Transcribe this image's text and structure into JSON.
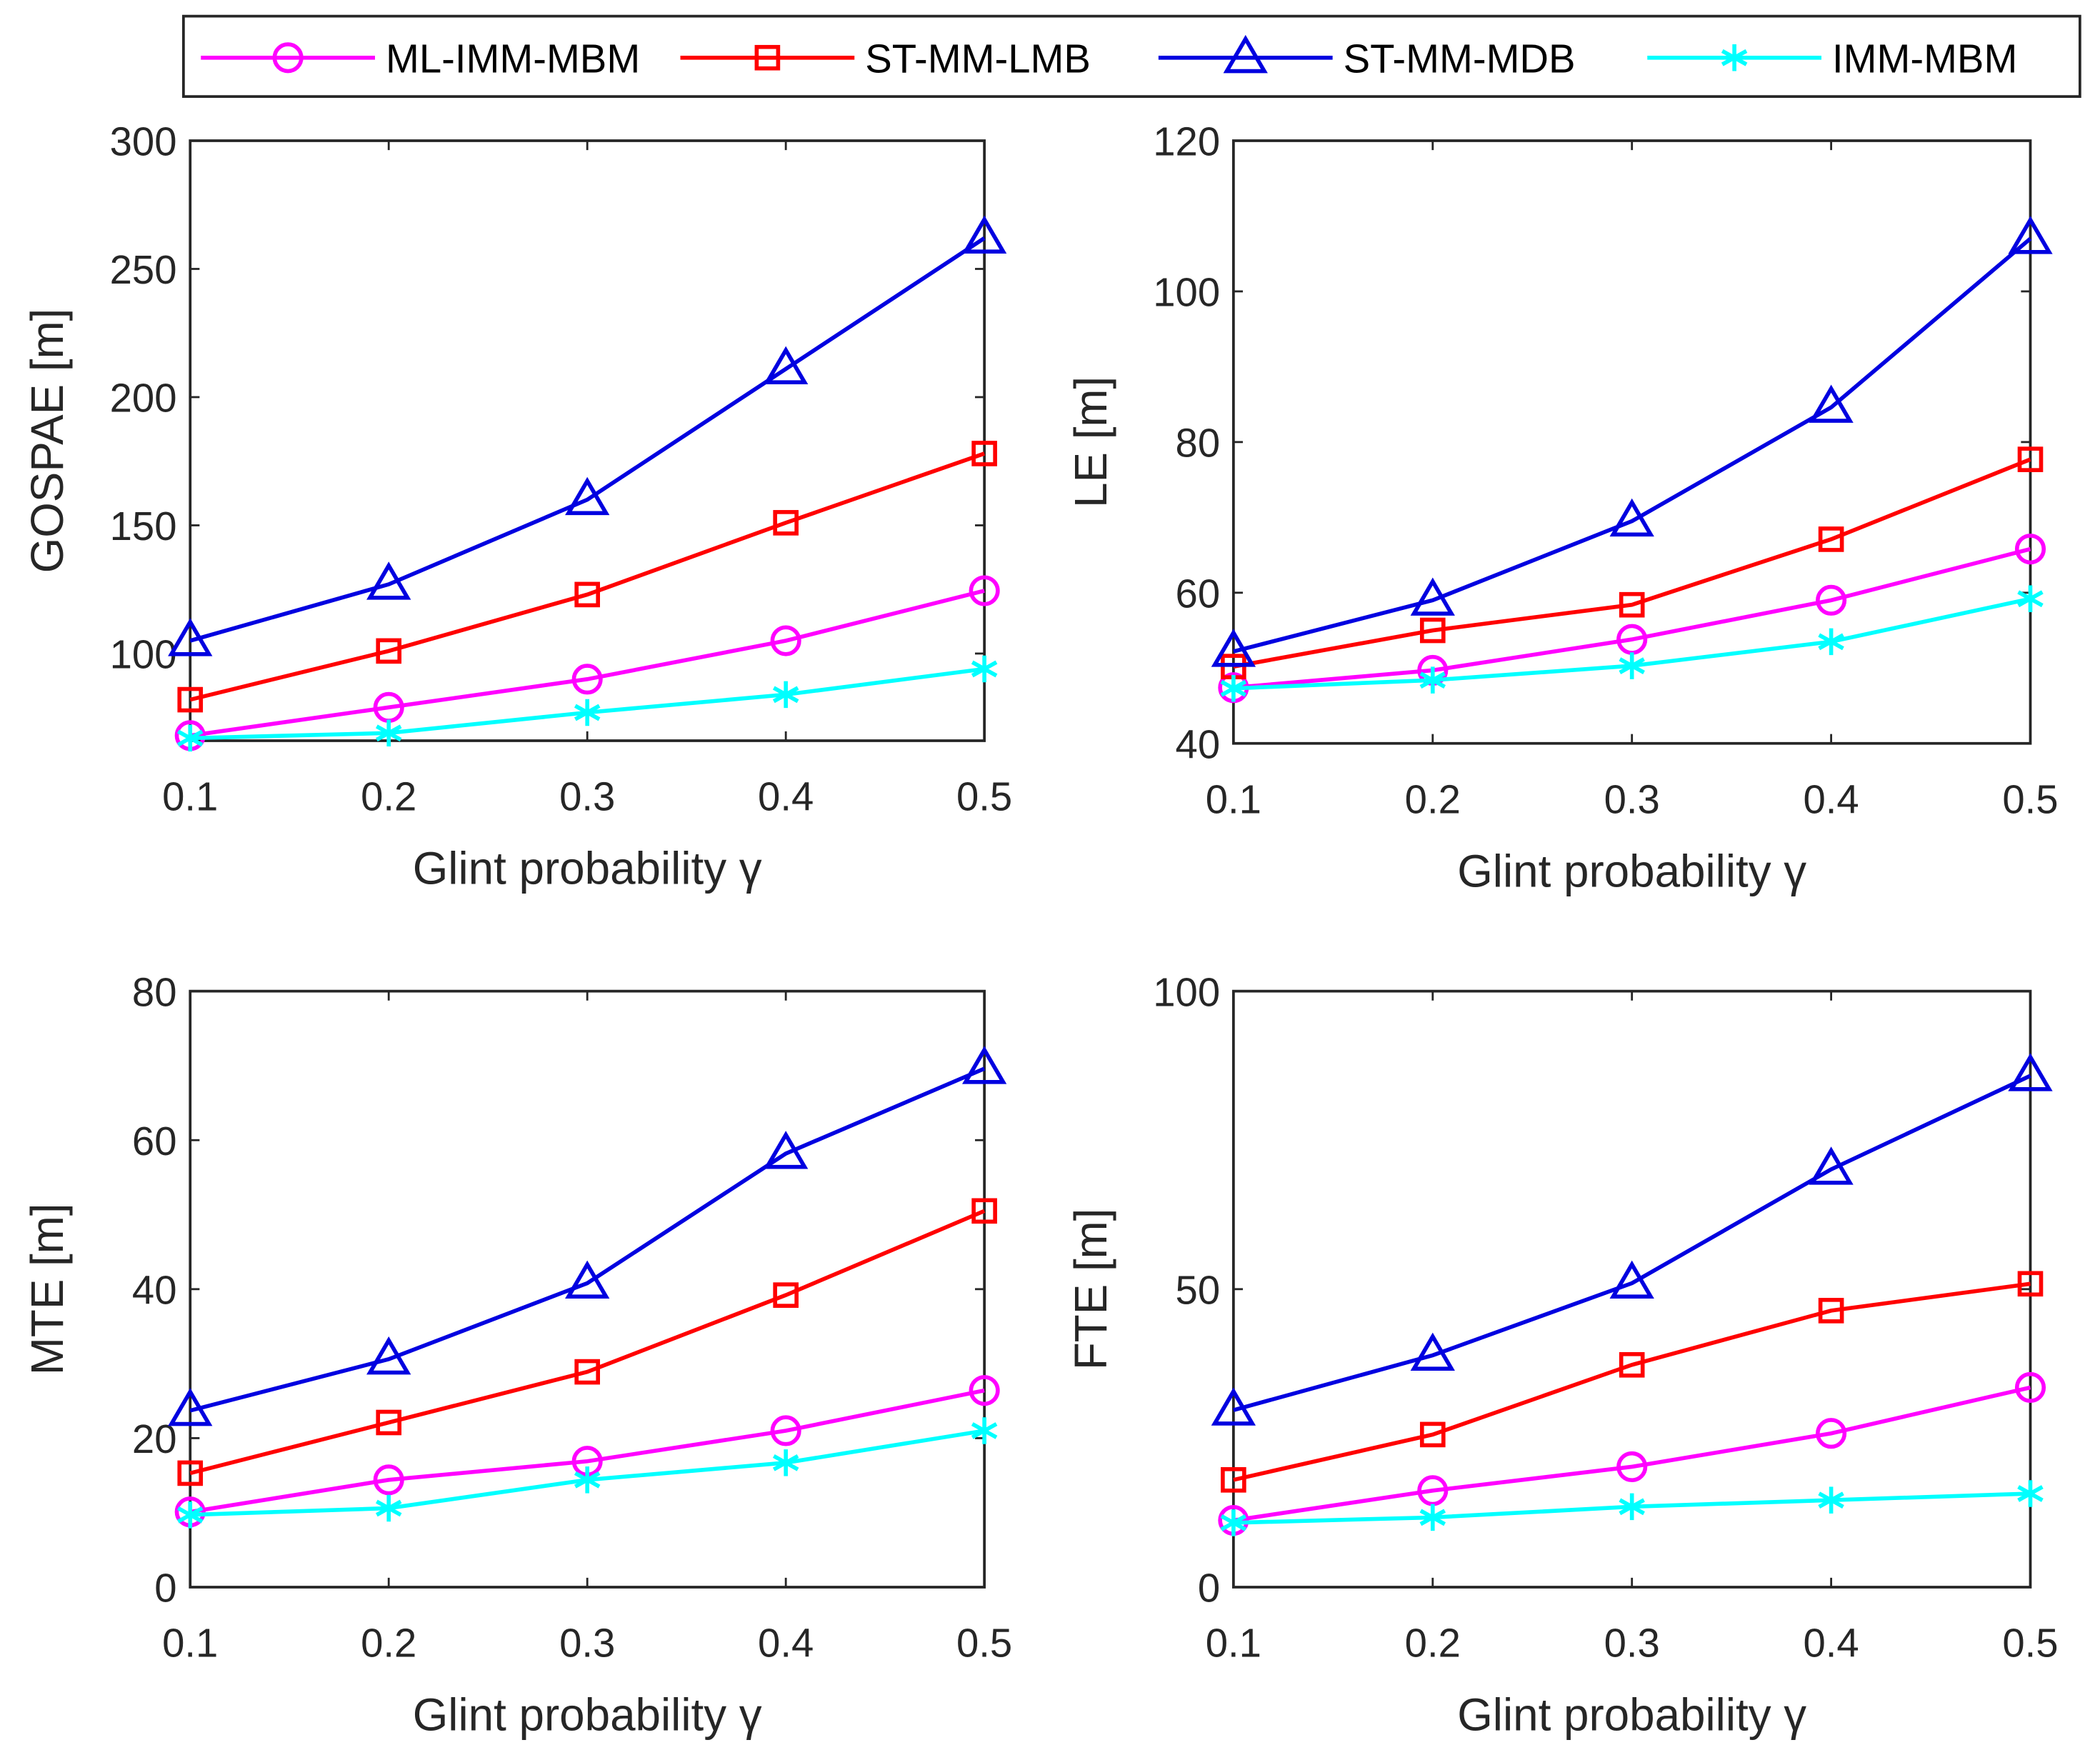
{
  "colors": {
    "ML-IMM-MBM": "#ff00ff",
    "ST-MM-LMB": "#ff0000",
    "ST-MM-MDB": "#0000e0",
    "IMM-MBM": "#00ffff"
  },
  "legend": [
    {
      "name": "ML-IMM-MBM",
      "marker": "circle"
    },
    {
      "name": "ST-MM-LMB",
      "marker": "square"
    },
    {
      "name": "ST-MM-MDB",
      "marker": "triangle"
    },
    {
      "name": "IMM-MBM",
      "marker": "asterisk"
    }
  ],
  "chart_data": [
    {
      "type": "line",
      "xlabel": "Glint probability γ",
      "ylabel": "GOSPAE [m]",
      "x": [
        0.1,
        0.2,
        0.3,
        0.4,
        0.5
      ],
      "xticks": [
        "0.1",
        "0.2",
        "0.3",
        "0.4",
        "0.5"
      ],
      "ylim": [
        66,
        300
      ],
      "yticks": [
        100,
        150,
        200,
        250,
        300
      ],
      "series": [
        {
          "name": "ML-IMM-MBM",
          "values": [
            68,
            79,
            90,
            105,
            124.5
          ]
        },
        {
          "name": "ST-MM-LMB",
          "values": [
            82,
            101,
            123,
            151,
            178
          ]
        },
        {
          "name": "ST-MM-MDB",
          "values": [
            105,
            127,
            160,
            211,
            262
          ]
        },
        {
          "name": "IMM-MBM",
          "values": [
            67,
            69,
            77,
            84,
            94
          ]
        }
      ]
    },
    {
      "type": "line",
      "xlabel": "Glint probability γ",
      "ylabel": "LE [m]",
      "x": [
        0.1,
        0.2,
        0.3,
        0.4,
        0.5
      ],
      "xticks": [
        "0.1",
        "0.2",
        "0.3",
        "0.4",
        "0.5"
      ],
      "ylim": [
        40,
        120
      ],
      "yticks": [
        40,
        60,
        80,
        100,
        120
      ],
      "series": [
        {
          "name": "ML-IMM-MBM",
          "values": [
            47.4,
            49.7,
            53.8,
            59,
            65.8
          ]
        },
        {
          "name": "ST-MM-LMB",
          "values": [
            50.2,
            55,
            58.4,
            67.1,
            77.7
          ]
        },
        {
          "name": "ST-MM-MDB",
          "values": [
            52.2,
            59,
            69.5,
            84.6,
            107
          ]
        },
        {
          "name": "IMM-MBM",
          "values": [
            47.3,
            48.4,
            50.3,
            53.5,
            59.2
          ]
        }
      ]
    },
    {
      "type": "line",
      "xlabel": "Glint probability γ",
      "ylabel": "MTE [m]",
      "x": [
        0.1,
        0.2,
        0.3,
        0.4,
        0.5
      ],
      "xticks": [
        "0.1",
        "0.2",
        "0.3",
        "0.4",
        "0.5"
      ],
      "ylim": [
        0,
        80
      ],
      "yticks": [
        0,
        20,
        40,
        60,
        80
      ],
      "series": [
        {
          "name": "ML-IMM-MBM",
          "values": [
            10.1,
            14.4,
            16.9,
            21,
            26.4
          ]
        },
        {
          "name": "ST-MM-LMB",
          "values": [
            15.3,
            22.1,
            28.9,
            39.2,
            50.5
          ]
        },
        {
          "name": "ST-MM-MDB",
          "values": [
            23.7,
            30.6,
            40.8,
            58.2,
            69.6
          ]
        },
        {
          "name": "IMM-MBM",
          "values": [
            9.7,
            10.6,
            14.4,
            16.7,
            21
          ]
        }
      ]
    },
    {
      "type": "line",
      "xlabel": "Glint probability γ",
      "ylabel": "FTE [m]",
      "x": [
        0.1,
        0.2,
        0.3,
        0.4,
        0.5
      ],
      "xticks": [
        "0.1",
        "0.2",
        "0.3",
        "0.4",
        "0.5"
      ],
      "ylim": [
        0,
        100
      ],
      "yticks": [
        0,
        50,
        100
      ],
      "series": [
        {
          "name": "ML-IMM-MBM",
          "values": [
            11.2,
            16.2,
            20.2,
            25.8,
            33.5
          ]
        },
        {
          "name": "ST-MM-LMB",
          "values": [
            18,
            25.6,
            37.3,
            46.4,
            50.9
          ]
        },
        {
          "name": "ST-MM-MDB",
          "values": [
            29.7,
            38.9,
            51,
            70.1,
            85.8
          ]
        },
        {
          "name": "IMM-MBM",
          "values": [
            10.8,
            11.7,
            13.5,
            14.6,
            15.7
          ]
        }
      ]
    }
  ]
}
